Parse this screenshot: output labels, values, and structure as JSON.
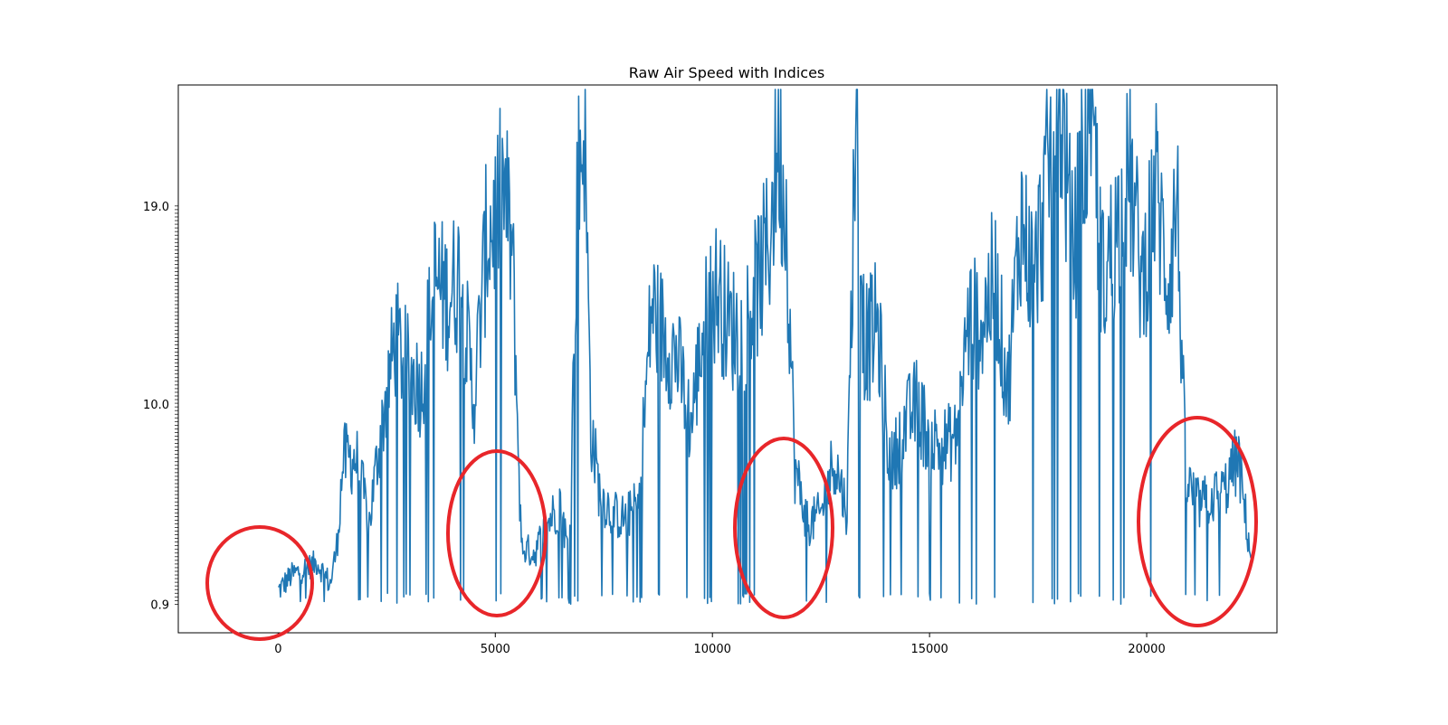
{
  "chart_data": {
    "type": "line",
    "title": "Raw Air Speed with Indices",
    "xlabel": "",
    "ylabel": "",
    "xlim": [
      -2300,
      23000
    ],
    "x_ticks": [
      "0",
      "5000",
      "10000",
      "15000",
      "20000"
    ],
    "x_tick_values": [
      0,
      5000,
      10000,
      15000,
      20000
    ],
    "y_ticks_visible": [
      "0.9",
      "10.0",
      "19.0"
    ],
    "y_tick_values": [
      0.9,
      10.0,
      19.0
    ],
    "ylim": [
      -0.4,
      24.5
    ],
    "grid": false,
    "series": [
      {
        "color": "#1f77b4",
        "x": [
          0,
          300,
          600,
          900,
          1200,
          1350,
          1500,
          1800,
          2100,
          2300,
          2500,
          2700,
          3000,
          3300,
          3600,
          3900,
          4200,
          4500,
          4800,
          5000,
          5200,
          5400,
          5600,
          5900,
          6200,
          6500,
          6700,
          6900,
          7050,
          7200,
          7400,
          7700,
          8000,
          8300,
          8600,
          8900,
          9200,
          9500,
          9800,
          10100,
          10400,
          10700,
          11000,
          11300,
          11500,
          11700,
          11900,
          12200,
          12500,
          12800,
          13100,
          13300,
          13500,
          13800,
          14100,
          14400,
          14700,
          15000,
          15300,
          15600,
          15900,
          16200,
          16500,
          16800,
          17100,
          17400,
          17700,
          18000,
          18300,
          18700,
          19000,
          19300,
          19600,
          19900,
          20200,
          20500,
          20700,
          20900,
          21200,
          21500,
          21800,
          22100,
          22400
        ],
        "y": [
          1.5,
          2.2,
          2.5,
          2.8,
          1.8,
          3.5,
          7.5,
          7.5,
          4.6,
          7.8,
          10.5,
          13.0,
          11.5,
          10.8,
          15.6,
          14.8,
          16.0,
          10.0,
          17.5,
          18.5,
          19.8,
          16.5,
          3.5,
          3.2,
          4.6,
          5.5,
          3.0,
          20.0,
          23.0,
          9.0,
          6.0,
          5.0,
          4.8,
          5.5,
          14.5,
          13.0,
          12.0,
          9.0,
          13.6,
          15.2,
          13.5,
          13.3,
          15.2,
          17.2,
          22.0,
          18.6,
          7.0,
          4.5,
          5.0,
          7.6,
          5.1,
          23.8,
          12.6,
          13.6,
          7.0,
          8.9,
          10.0,
          8.4,
          8.1,
          8.4,
          13.8,
          13.6,
          15.8,
          10.5,
          18.5,
          15.5,
          20.0,
          24.2,
          16.5,
          24.0,
          15.5,
          17.8,
          20.5,
          15.5,
          20.0,
          15.5,
          19.5,
          6.5,
          5.4,
          5.7,
          6.1,
          7.6,
          3.0
        ]
      }
    ]
  }
}
